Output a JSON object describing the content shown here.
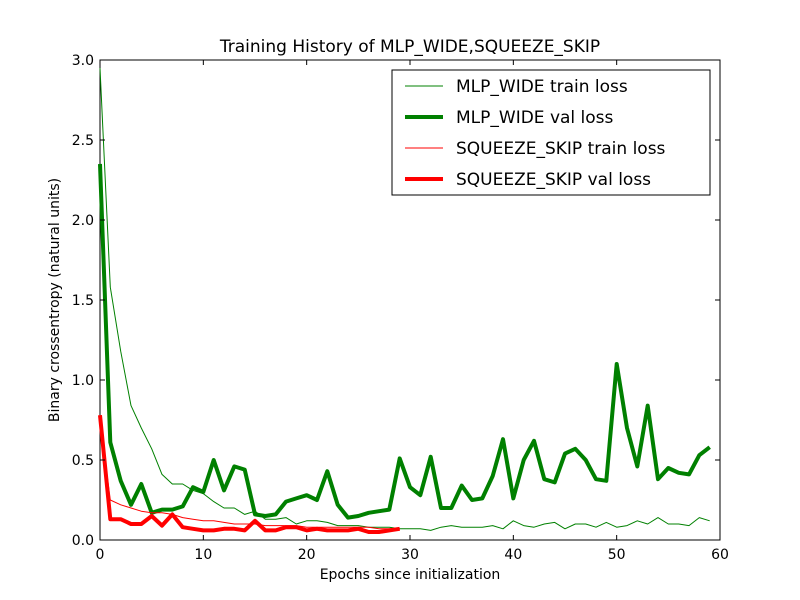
{
  "chart_data": {
    "type": "line",
    "title": "Training History of MLP_WIDE,SQUEEZE_SKIP",
    "xlabel": "Epochs since initialization",
    "ylabel": "Binary crossentropy (natural units)",
    "xlim": [
      0,
      60
    ],
    "ylim": [
      0,
      3.0
    ],
    "xticks": [
      "0",
      "10",
      "20",
      "30",
      "40",
      "50",
      "60"
    ],
    "yticks": [
      "0.0",
      "0.5",
      "1.0",
      "1.5",
      "2.0",
      "2.5",
      "3.0"
    ],
    "grid": false,
    "legend_position": "top-right",
    "series": [
      {
        "name": "MLP_WIDE train loss",
        "color": "#008000",
        "line_style": "thin",
        "x": [
          0,
          1,
          2,
          3,
          4,
          5,
          6,
          7,
          8,
          9,
          10,
          11,
          12,
          13,
          14,
          15,
          16,
          17,
          18,
          19,
          20,
          21,
          22,
          23,
          24,
          25,
          26,
          27,
          28,
          29,
          30,
          31,
          32,
          33,
          34,
          35,
          36,
          37,
          38,
          39,
          40,
          41,
          42,
          43,
          44,
          45,
          46,
          47,
          48,
          49,
          50,
          51,
          52,
          53,
          54,
          55,
          56,
          57,
          58,
          59
        ],
        "values": [
          2.95,
          1.58,
          1.18,
          0.84,
          0.7,
          0.57,
          0.41,
          0.35,
          0.35,
          0.31,
          0.29,
          0.24,
          0.2,
          0.2,
          0.16,
          0.18,
          0.13,
          0.13,
          0.14,
          0.1,
          0.12,
          0.12,
          0.11,
          0.09,
          0.09,
          0.09,
          0.08,
          0.08,
          0.08,
          0.07,
          0.07,
          0.07,
          0.06,
          0.08,
          0.09,
          0.08,
          0.08,
          0.08,
          0.09,
          0.07,
          0.12,
          0.09,
          0.08,
          0.1,
          0.11,
          0.07,
          0.1,
          0.1,
          0.08,
          0.11,
          0.08,
          0.09,
          0.12,
          0.1,
          0.14,
          0.1,
          0.1,
          0.09,
          0.14,
          0.12
        ]
      },
      {
        "name": "MLP_WIDE val loss",
        "color": "#008000",
        "line_style": "thick",
        "x": [
          0,
          1,
          2,
          3,
          4,
          5,
          6,
          7,
          8,
          9,
          10,
          11,
          12,
          13,
          14,
          15,
          16,
          17,
          18,
          19,
          20,
          21,
          22,
          23,
          24,
          25,
          26,
          27,
          28,
          29,
          30,
          31,
          32,
          33,
          34,
          35,
          36,
          37,
          38,
          39,
          40,
          41,
          42,
          43,
          44,
          45,
          46,
          47,
          48,
          49,
          50,
          51,
          52,
          53,
          54,
          55,
          56,
          57,
          58,
          59
        ],
        "values": [
          2.35,
          0.61,
          0.37,
          0.22,
          0.35,
          0.17,
          0.19,
          0.19,
          0.21,
          0.33,
          0.3,
          0.5,
          0.31,
          0.46,
          0.44,
          0.16,
          0.15,
          0.16,
          0.24,
          0.26,
          0.28,
          0.25,
          0.43,
          0.22,
          0.14,
          0.15,
          0.17,
          0.18,
          0.19,
          0.51,
          0.33,
          0.28,
          0.52,
          0.2,
          0.2,
          0.34,
          0.25,
          0.26,
          0.4,
          0.63,
          0.26,
          0.5,
          0.62,
          0.38,
          0.36,
          0.54,
          0.57,
          0.5,
          0.38,
          0.37,
          1.1,
          0.7,
          0.46,
          0.84,
          0.38,
          0.45,
          0.42,
          0.41,
          0.53,
          0.58
        ]
      },
      {
        "name": "SQUEEZE_SKIP train loss",
        "color": "#ff0000",
        "line_style": "thin",
        "x": [
          0,
          1,
          2,
          3,
          4,
          5,
          6,
          7,
          8,
          9,
          10,
          11,
          12,
          13,
          14,
          15,
          16,
          17,
          18,
          19,
          20,
          21,
          22,
          23,
          24,
          25,
          26,
          27,
          28,
          29
        ],
        "values": [
          0.75,
          0.25,
          0.22,
          0.2,
          0.18,
          0.17,
          0.17,
          0.16,
          0.14,
          0.13,
          0.12,
          0.12,
          0.11,
          0.1,
          0.1,
          0.1,
          0.09,
          0.09,
          0.09,
          0.09,
          0.08,
          0.08,
          0.08,
          0.08,
          0.08,
          0.08,
          0.08,
          0.07,
          0.07,
          0.07
        ]
      },
      {
        "name": "SQUEEZE_SKIP val loss",
        "color": "#ff0000",
        "line_style": "thick",
        "x": [
          0,
          1,
          2,
          3,
          4,
          5,
          6,
          7,
          8,
          9,
          10,
          11,
          12,
          13,
          14,
          15,
          16,
          17,
          18,
          19,
          20,
          21,
          22,
          23,
          24,
          25,
          26,
          27,
          28,
          29
        ],
        "values": [
          0.78,
          0.13,
          0.13,
          0.1,
          0.1,
          0.15,
          0.09,
          0.16,
          0.08,
          0.07,
          0.06,
          0.06,
          0.07,
          0.07,
          0.06,
          0.12,
          0.06,
          0.06,
          0.08,
          0.08,
          0.06,
          0.07,
          0.06,
          0.06,
          0.06,
          0.07,
          0.05,
          0.05,
          0.06,
          0.07
        ]
      }
    ]
  }
}
